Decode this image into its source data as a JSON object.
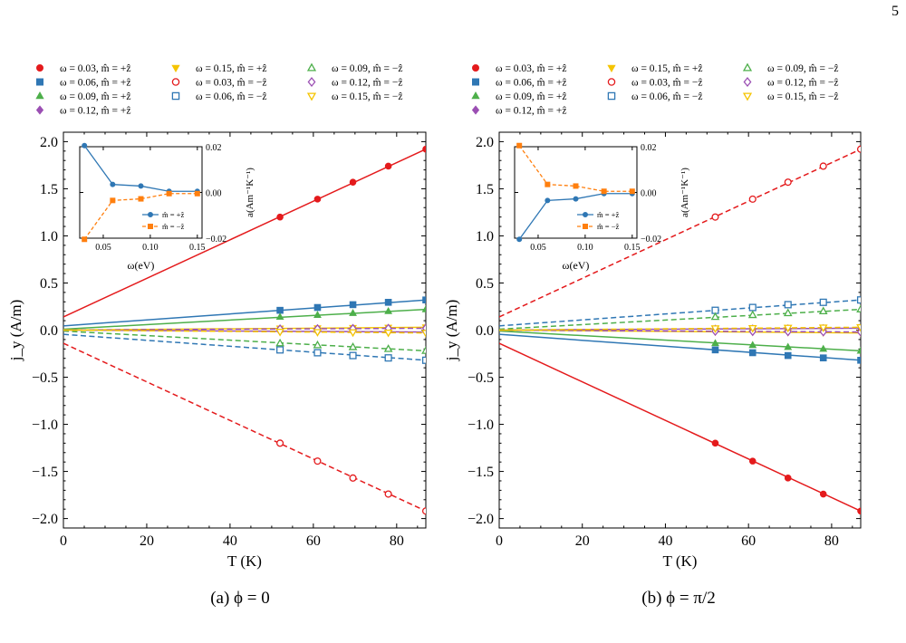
{
  "page_number": "5",
  "colors": {
    "red": "#e41a1c",
    "blue": "#2f77b4",
    "green": "#4daf4a",
    "purple": "#9b4fb3",
    "yellow": "#f5c400",
    "orange": "#ff7f0e",
    "axis": "#000000"
  },
  "legend_entries": [
    {
      "label": "ω = 0.03, m̂ = +ẑ",
      "color": "#e41a1c",
      "marker": "circle",
      "filled": true
    },
    {
      "label": "ω = 0.06, m̂ = +ẑ",
      "color": "#2f77b4",
      "marker": "square",
      "filled": true
    },
    {
      "label": "ω = 0.09, m̂ = +ẑ",
      "color": "#4daf4a",
      "marker": "triangle-up",
      "filled": true
    },
    {
      "label": "ω = 0.12, m̂ = +ẑ",
      "color": "#9b4fb3",
      "marker": "diamond",
      "filled": true
    },
    {
      "label": "ω = 0.15, m̂ = +ẑ",
      "color": "#f5c400",
      "marker": "triangle-down",
      "filled": true
    },
    {
      "label": "ω = 0.03, m̂ = −ẑ",
      "color": "#e41a1c",
      "marker": "circle",
      "filled": false
    },
    {
      "label": "ω = 0.06, m̂ = −ẑ",
      "color": "#2f77b4",
      "marker": "square",
      "filled": false
    },
    {
      "label": "ω = 0.09, m̂ = −ẑ",
      "color": "#4daf4a",
      "marker": "triangle-up",
      "filled": false
    },
    {
      "label": "ω = 0.12, m̂ = −ẑ",
      "color": "#9b4fb3",
      "marker": "diamond",
      "filled": false
    },
    {
      "label": "ω = 0.15, m̂ = −ẑ",
      "color": "#f5c400",
      "marker": "triangle-down",
      "filled": false
    }
  ],
  "chart_data": [
    {
      "type": "line",
      "caption": "(a) ϕ = 0",
      "xlabel": "T (K)",
      "ylabel": "j_y (A/m)",
      "xlim": [
        0,
        87
      ],
      "ylim": [
        -2.1,
        2.1
      ],
      "xticks": [
        0,
        20,
        40,
        60,
        80
      ],
      "yticks": [
        -2.0,
        -1.5,
        -1.0,
        -0.5,
        0.0,
        0.5,
        1.0,
        1.5,
        2.0
      ],
      "ytick_labels": [
        "−2.0",
        "−1.5",
        "−1.0",
        "−0.5",
        "0.0",
        "0.5",
        "1.0",
        "1.5",
        "2.0"
      ],
      "marker_x": [
        52,
        61,
        69.5,
        78,
        87
      ],
      "series": [
        {
          "name": "ω = 0.03, m̂ = +ẑ",
          "color": "#e41a1c",
          "marker": "circle",
          "filled": true,
          "dashed": false,
          "line_y": [
            0.14,
            1.92
          ],
          "values": [
            1.2,
            1.39,
            1.57,
            1.74,
            1.92
          ]
        },
        {
          "name": "ω = 0.06, m̂ = +ẑ",
          "color": "#2f77b4",
          "marker": "square",
          "filled": true,
          "dashed": false,
          "line_y": [
            0.045,
            0.32
          ],
          "values": [
            0.21,
            0.24,
            0.27,
            0.295,
            0.32
          ]
        },
        {
          "name": "ω = 0.09, m̂ = +ẑ",
          "color": "#4daf4a",
          "marker": "triangle-up",
          "filled": true,
          "dashed": false,
          "line_y": [
            0.01,
            0.22
          ],
          "values": [
            0.14,
            0.16,
            0.18,
            0.2,
            0.22
          ]
        },
        {
          "name": "ω = 0.12, m̂ = +ẑ",
          "color": "#9b4fb3",
          "marker": "diamond",
          "filled": true,
          "dashed": false,
          "line_y": [
            0.0,
            -0.02
          ],
          "values": [
            -0.012,
            -0.014,
            -0.016,
            -0.018,
            -0.02
          ]
        },
        {
          "name": "ω = 0.15, m̂ = +ẑ",
          "color": "#f5c400",
          "marker": "triangle-down",
          "filled": true,
          "dashed": false,
          "line_y": [
            0.0,
            0.03
          ],
          "values": [
            0.018,
            0.021,
            0.024,
            0.027,
            0.03
          ]
        },
        {
          "name": "ω = 0.03, m̂ = −ẑ",
          "color": "#e41a1c",
          "marker": "circle",
          "filled": false,
          "dashed": true,
          "line_y": [
            -0.14,
            -1.92
          ],
          "values": [
            -1.2,
            -1.39,
            -1.57,
            -1.74,
            -1.92
          ]
        },
        {
          "name": "ω = 0.06, m̂ = −ẑ",
          "color": "#2f77b4",
          "marker": "square",
          "filled": false,
          "dashed": true,
          "line_y": [
            -0.045,
            -0.32
          ],
          "values": [
            -0.21,
            -0.24,
            -0.27,
            -0.295,
            -0.32
          ]
        },
        {
          "name": "ω = 0.09, m̂ = −ẑ",
          "color": "#4daf4a",
          "marker": "triangle-up",
          "filled": false,
          "dashed": true,
          "line_y": [
            -0.01,
            -0.22
          ],
          "values": [
            -0.14,
            -0.16,
            -0.18,
            -0.2,
            -0.22
          ]
        },
        {
          "name": "ω = 0.12, m̂ = −ẑ",
          "color": "#9b4fb3",
          "marker": "diamond",
          "filled": false,
          "dashed": true,
          "line_y": [
            0.0,
            0.02
          ],
          "values": [
            0.012,
            0.014,
            0.016,
            0.018,
            0.02
          ]
        },
        {
          "name": "ω = 0.15, m̂ = −ẑ",
          "color": "#f5c400",
          "marker": "triangle-down",
          "filled": false,
          "dashed": true,
          "line_y": [
            0.0,
            -0.03
          ],
          "values": [
            -0.018,
            -0.021,
            -0.024,
            -0.027,
            -0.03
          ]
        }
      ],
      "inset": {
        "type": "line",
        "xlabel": "ω(eV)",
        "ylabel": "a(Am⁻¹K⁻¹)",
        "xlim": [
          0.025,
          0.155
        ],
        "ylim": [
          -0.02,
          0.02
        ],
        "xticks": [
          0.05,
          0.1,
          0.15
        ],
        "xtick_labels": [
          "0.05",
          "0.10",
          "0.15"
        ],
        "yticks": [
          -0.02,
          0.0,
          0.02
        ],
        "ytick_labels": [
          "−0.02",
          "0.00",
          "0.02"
        ],
        "x": [
          0.03,
          0.06,
          0.09,
          0.12,
          0.15
        ],
        "series": [
          {
            "name": "m̂ = +ẑ",
            "color": "#2f77b4",
            "marker": "circle",
            "dashed": false,
            "values": [
              0.0205,
              0.0035,
              0.0028,
              0.0005,
              0.0005
            ]
          },
          {
            "name": "m̂ = −ẑ",
            "color": "#ff7f0e",
            "marker": "square",
            "dashed": true,
            "values": [
              -0.0205,
              -0.0035,
              -0.0028,
              -0.0005,
              -0.0005
            ]
          }
        ]
      }
    },
    {
      "type": "line",
      "caption": "(b) ϕ = π/2",
      "xlabel": "T (K)",
      "ylabel": "j_y (A/m)",
      "xlim": [
        0,
        87
      ],
      "ylim": [
        -2.1,
        2.1
      ],
      "xticks": [
        0,
        20,
        40,
        60,
        80
      ],
      "yticks": [
        -2.0,
        -1.5,
        -1.0,
        -0.5,
        0.0,
        0.5,
        1.0,
        1.5,
        2.0
      ],
      "ytick_labels": [
        "−2.0",
        "−1.5",
        "−1.0",
        "−0.5",
        "0.0",
        "0.5",
        "1.0",
        "1.5",
        "2.0"
      ],
      "marker_x": [
        52,
        61,
        69.5,
        78,
        87
      ],
      "series": [
        {
          "name": "ω = 0.03, m̂ = +ẑ",
          "color": "#e41a1c",
          "marker": "circle",
          "filled": true,
          "dashed": false,
          "line_y": [
            -0.14,
            -1.92
          ],
          "values": [
            -1.2,
            -1.39,
            -1.57,
            -1.74,
            -1.92
          ]
        },
        {
          "name": "ω = 0.06, m̂ = +ẑ",
          "color": "#2f77b4",
          "marker": "square",
          "filled": true,
          "dashed": false,
          "line_y": [
            -0.045,
            -0.32
          ],
          "values": [
            -0.21,
            -0.24,
            -0.27,
            -0.295,
            -0.32
          ]
        },
        {
          "name": "ω = 0.09, m̂ = +ẑ",
          "color": "#4daf4a",
          "marker": "triangle-up",
          "filled": true,
          "dashed": false,
          "line_y": [
            -0.01,
            -0.22
          ],
          "values": [
            -0.14,
            -0.16,
            -0.18,
            -0.2,
            -0.22
          ]
        },
        {
          "name": "ω = 0.12, m̂ = +ẑ",
          "color": "#9b4fb3",
          "marker": "diamond",
          "filled": true,
          "dashed": false,
          "line_y": [
            0.0,
            0.02
          ],
          "values": [
            0.012,
            0.014,
            0.016,
            0.018,
            0.02
          ]
        },
        {
          "name": "ω = 0.15, m̂ = +ẑ",
          "color": "#f5c400",
          "marker": "triangle-down",
          "filled": true,
          "dashed": false,
          "line_y": [
            0.0,
            -0.03
          ],
          "values": [
            -0.018,
            -0.021,
            -0.024,
            -0.027,
            -0.03
          ]
        },
        {
          "name": "ω = 0.03, m̂ = −ẑ",
          "color": "#e41a1c",
          "marker": "circle",
          "filled": false,
          "dashed": true,
          "line_y": [
            0.14,
            1.92
          ],
          "values": [
            1.2,
            1.39,
            1.57,
            1.74,
            1.92
          ]
        },
        {
          "name": "ω = 0.06, m̂ = −ẑ",
          "color": "#2f77b4",
          "marker": "square",
          "filled": false,
          "dashed": true,
          "line_y": [
            0.045,
            0.32
          ],
          "values": [
            0.21,
            0.24,
            0.27,
            0.295,
            0.32
          ]
        },
        {
          "name": "ω = 0.09, m̂ = −ẑ",
          "color": "#4daf4a",
          "marker": "triangle-up",
          "filled": false,
          "dashed": true,
          "line_y": [
            0.01,
            0.22
          ],
          "values": [
            0.14,
            0.16,
            0.18,
            0.2,
            0.22
          ]
        },
        {
          "name": "ω = 0.12, m̂ = −ẑ",
          "color": "#9b4fb3",
          "marker": "diamond",
          "filled": false,
          "dashed": true,
          "line_y": [
            0.0,
            -0.02
          ],
          "values": [
            -0.012,
            -0.014,
            -0.016,
            -0.018,
            -0.02
          ]
        },
        {
          "name": "ω = 0.15, m̂ = −ẑ",
          "color": "#f5c400",
          "marker": "triangle-down",
          "filled": false,
          "dashed": true,
          "line_y": [
            0.0,
            0.03
          ],
          "values": [
            0.018,
            0.021,
            0.024,
            0.027,
            0.03
          ]
        }
      ],
      "inset": {
        "type": "line",
        "xlabel": "ω(eV)",
        "ylabel": "a(Am⁻¹K⁻¹)",
        "xlim": [
          0.025,
          0.155
        ],
        "ylim": [
          -0.02,
          0.02
        ],
        "xticks": [
          0.05,
          0.1,
          0.15
        ],
        "xtick_labels": [
          "0.05",
          "0.10",
          "0.15"
        ],
        "yticks": [
          -0.02,
          0.0,
          0.02
        ],
        "ytick_labels": [
          "−0.02",
          "0.00",
          "0.02"
        ],
        "x": [
          0.03,
          0.06,
          0.09,
          0.12,
          0.15
        ],
        "series": [
          {
            "name": "m̂ = +ẑ",
            "color": "#2f77b4",
            "marker": "circle",
            "dashed": false,
            "values": [
              -0.0205,
              -0.0035,
              -0.0028,
              -0.0005,
              -0.0005
            ]
          },
          {
            "name": "m̂ = −ẑ",
            "color": "#ff7f0e",
            "marker": "square",
            "dashed": true,
            "values": [
              0.0205,
              0.0035,
              0.0028,
              0.0005,
              0.0005
            ]
          }
        ]
      }
    }
  ]
}
